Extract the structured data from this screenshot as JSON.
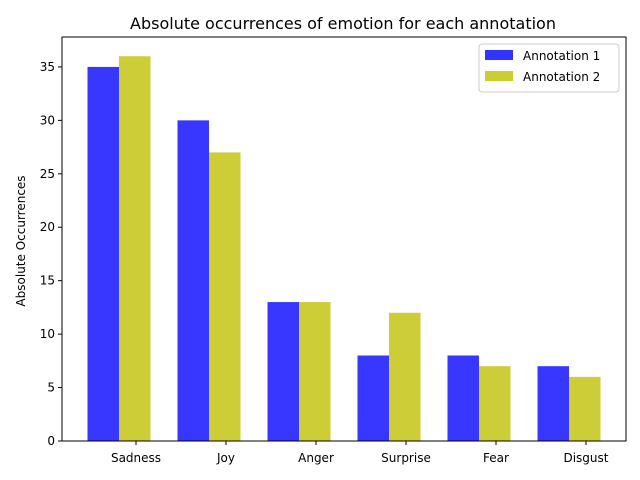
{
  "chart_data": {
    "type": "bar",
    "title": "Absolute occurrences of emotion for each annotation",
    "xlabel": "",
    "ylabel": "Absolute Occurrences",
    "categories": [
      "Sadness",
      "Joy",
      "Anger",
      "Surprise",
      "Fear",
      "Disgust"
    ],
    "series": [
      {
        "name": "Annotation 1",
        "values": [
          35,
          30,
          13,
          8,
          8,
          7
        ],
        "color": "#3333ff"
      },
      {
        "name": "Annotation 2",
        "values": [
          36,
          27,
          13,
          12,
          7,
          6
        ],
        "color": "#cccc33"
      }
    ],
    "ylim": [
      0,
      37.8
    ],
    "yticks": [
      0,
      5,
      10,
      15,
      20,
      25,
      30,
      35
    ],
    "grid": false,
    "legend": "top-right"
  }
}
